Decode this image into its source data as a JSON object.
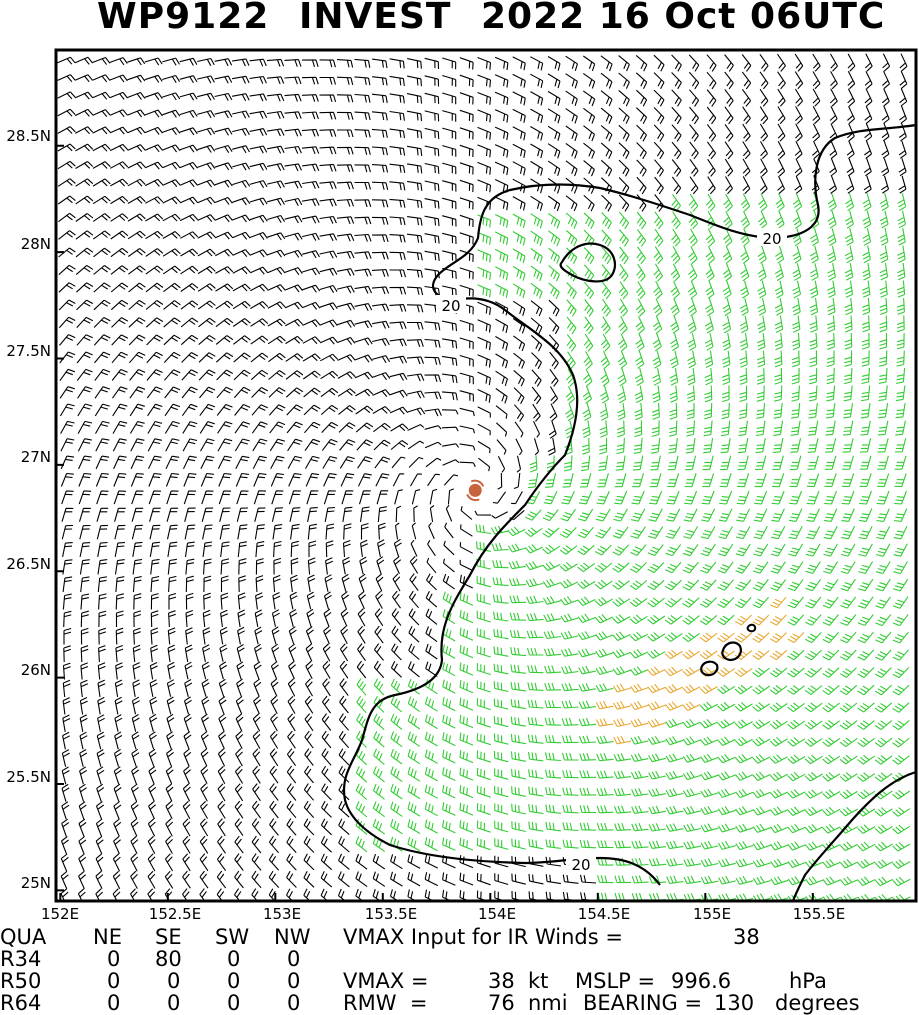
{
  "title": {
    "storm_id": "WP9122",
    "storm_name": "INVEST",
    "datetime": "2022 16 Oct 06UTC"
  },
  "map": {
    "lat_labels": [
      "28.5N",
      "28N",
      "27.5N",
      "27N",
      "26.5N",
      "26N",
      "25.5N",
      "25N"
    ],
    "lon_labels": [
      "152E",
      "152.5E",
      "153E",
      "153.5E",
      "154E",
      "154.5E",
      "155E",
      "155.5E"
    ],
    "contour_labels": [
      "20",
      "20",
      "20"
    ],
    "center": {
      "lat": 26.88,
      "lon": 153.93,
      "color": "#c8643c"
    },
    "colors": {
      "barb_low": "#000000",
      "barb_34kt": "#33cc33",
      "barb_50kt": "#e8a830",
      "contour": "#000000"
    },
    "lat_range": [
      24.95,
      28.95
    ],
    "lon_range": [
      151.98,
      155.98
    ]
  },
  "table": {
    "header": [
      "QUA",
      "NE",
      "SE",
      "SW",
      "NW"
    ],
    "rows": [
      {
        "label": "R34",
        "values": [
          "0",
          "80",
          "0",
          "0"
        ]
      },
      {
        "label": "R50",
        "values": [
          "0",
          "0",
          "0",
          "0"
        ]
      },
      {
        "label": "R64",
        "values": [
          "0",
          "0",
          "0",
          "0"
        ]
      }
    ],
    "vmax_input_text": "VMAX Input for IR Winds =",
    "vmax_input_value": "38",
    "vmax_text": "VMAX =",
    "vmax_value": "38",
    "vmax_unit": "kt",
    "mslp_text": "MSLP =",
    "mslp_value": "996.6",
    "mslp_unit": "hPa",
    "rmw_text": "RMW  =",
    "rmw_value": "76",
    "rmw_unit": "nmi",
    "bearing_text": "BEARING =",
    "bearing_value": "130",
    "bearing_unit": "degrees"
  }
}
